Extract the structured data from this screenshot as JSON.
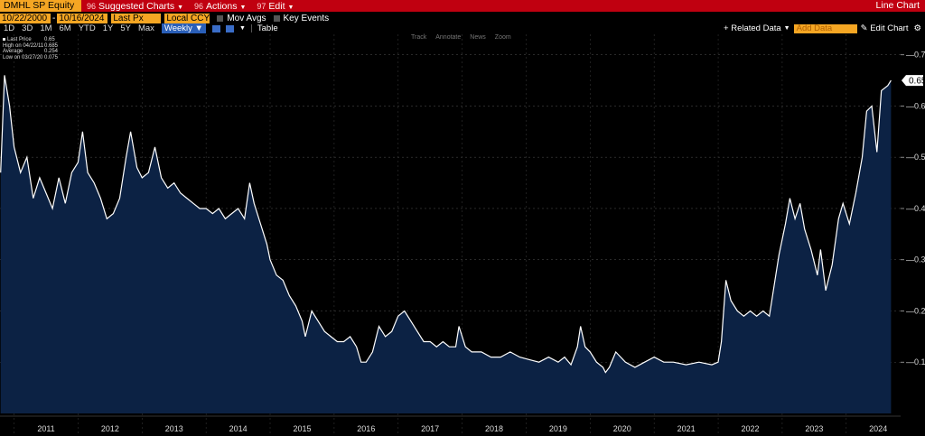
{
  "top": {
    "ticker": "DMHL SP Equity",
    "menu": [
      {
        "num": "96",
        "label": "Suggested Charts"
      },
      {
        "num": "96",
        "label": "Actions"
      },
      {
        "num": "97",
        "label": "Edit"
      }
    ],
    "chart_type": "Line Chart"
  },
  "range": {
    "start": "10/22/2000",
    "end": "10/16/2024",
    "field": "Last Px",
    "currency": "Local CCY",
    "mov_avgs": "Mov Avgs",
    "key_events": "Key Events"
  },
  "periods": [
    "1D",
    "3D",
    "1M",
    "6M",
    "YTD",
    "1Y",
    "5Y",
    "Max"
  ],
  "frequency": "Weekly",
  "table_label": "Table",
  "related_data": "Related Data",
  "add_data_placeholder": "Add Data",
  "edit_chart": "Edit Chart",
  "mini_tools": [
    "Track",
    "Annotate",
    "News",
    "Zoom"
  ],
  "legend": [
    {
      "k": "Last Price",
      "v": "0.65"
    },
    {
      "k": "High on 04/22/11",
      "v": "0.685"
    },
    {
      "k": "Average",
      "v": "0.254"
    },
    {
      "k": "Low on 03/27/20",
      "v": "0.075"
    }
  ],
  "colors": {
    "line": "#ffffff",
    "area": "#0c2244",
    "accent": "#f5a623",
    "menu_bar": "#c00010"
  },
  "chart_data": {
    "type": "area",
    "series": [
      {
        "values": [
          {
            "x": 2010.79,
            "y": 0.47
          },
          {
            "x": 2010.85,
            "y": 0.66
          },
          {
            "x": 2010.93,
            "y": 0.6
          },
          {
            "x": 2011.0,
            "y": 0.52
          },
          {
            "x": 2011.1,
            "y": 0.47
          },
          {
            "x": 2011.2,
            "y": 0.5
          },
          {
            "x": 2011.3,
            "y": 0.42
          },
          {
            "x": 2011.4,
            "y": 0.46
          },
          {
            "x": 2011.5,
            "y": 0.43
          },
          {
            "x": 2011.6,
            "y": 0.4
          },
          {
            "x": 2011.7,
            "y": 0.46
          },
          {
            "x": 2011.8,
            "y": 0.41
          },
          {
            "x": 2011.9,
            "y": 0.47
          },
          {
            "x": 2012.0,
            "y": 0.49
          },
          {
            "x": 2012.07,
            "y": 0.55
          },
          {
            "x": 2012.15,
            "y": 0.47
          },
          {
            "x": 2012.25,
            "y": 0.45
          },
          {
            "x": 2012.35,
            "y": 0.42
          },
          {
            "x": 2012.45,
            "y": 0.38
          },
          {
            "x": 2012.55,
            "y": 0.39
          },
          {
            "x": 2012.65,
            "y": 0.42
          },
          {
            "x": 2012.75,
            "y": 0.5
          },
          {
            "x": 2012.82,
            "y": 0.55
          },
          {
            "x": 2012.92,
            "y": 0.48
          },
          {
            "x": 2013.0,
            "y": 0.46
          },
          {
            "x": 2013.1,
            "y": 0.47
          },
          {
            "x": 2013.2,
            "y": 0.52
          },
          {
            "x": 2013.3,
            "y": 0.46
          },
          {
            "x": 2013.4,
            "y": 0.44
          },
          {
            "x": 2013.5,
            "y": 0.45
          },
          {
            "x": 2013.6,
            "y": 0.43
          },
          {
            "x": 2013.7,
            "y": 0.42
          },
          {
            "x": 2013.8,
            "y": 0.41
          },
          {
            "x": 2013.9,
            "y": 0.4
          },
          {
            "x": 2014.0,
            "y": 0.4
          },
          {
            "x": 2014.1,
            "y": 0.39
          },
          {
            "x": 2014.2,
            "y": 0.4
          },
          {
            "x": 2014.3,
            "y": 0.38
          },
          {
            "x": 2014.4,
            "y": 0.39
          },
          {
            "x": 2014.5,
            "y": 0.4
          },
          {
            "x": 2014.6,
            "y": 0.38
          },
          {
            "x": 2014.68,
            "y": 0.45
          },
          {
            "x": 2014.75,
            "y": 0.41
          },
          {
            "x": 2014.85,
            "y": 0.37
          },
          {
            "x": 2014.95,
            "y": 0.33
          },
          {
            "x": 2015.0,
            "y": 0.3
          },
          {
            "x": 2015.1,
            "y": 0.27
          },
          {
            "x": 2015.2,
            "y": 0.26
          },
          {
            "x": 2015.3,
            "y": 0.23
          },
          {
            "x": 2015.4,
            "y": 0.21
          },
          {
            "x": 2015.5,
            "y": 0.18
          },
          {
            "x": 2015.55,
            "y": 0.15
          },
          {
            "x": 2015.65,
            "y": 0.2
          },
          {
            "x": 2015.75,
            "y": 0.18
          },
          {
            "x": 2015.85,
            "y": 0.16
          },
          {
            "x": 2015.95,
            "y": 0.15
          },
          {
            "x": 2016.05,
            "y": 0.14
          },
          {
            "x": 2016.15,
            "y": 0.14
          },
          {
            "x": 2016.25,
            "y": 0.15
          },
          {
            "x": 2016.35,
            "y": 0.13
          },
          {
            "x": 2016.42,
            "y": 0.1
          },
          {
            "x": 2016.5,
            "y": 0.1
          },
          {
            "x": 2016.6,
            "y": 0.12
          },
          {
            "x": 2016.7,
            "y": 0.17
          },
          {
            "x": 2016.8,
            "y": 0.15
          },
          {
            "x": 2016.9,
            "y": 0.16
          },
          {
            "x": 2017.0,
            "y": 0.19
          },
          {
            "x": 2017.1,
            "y": 0.2
          },
          {
            "x": 2017.2,
            "y": 0.18
          },
          {
            "x": 2017.3,
            "y": 0.16
          },
          {
            "x": 2017.4,
            "y": 0.14
          },
          {
            "x": 2017.5,
            "y": 0.14
          },
          {
            "x": 2017.6,
            "y": 0.13
          },
          {
            "x": 2017.7,
            "y": 0.14
          },
          {
            "x": 2017.8,
            "y": 0.13
          },
          {
            "x": 2017.9,
            "y": 0.13
          },
          {
            "x": 2017.95,
            "y": 0.17
          },
          {
            "x": 2018.05,
            "y": 0.13
          },
          {
            "x": 2018.15,
            "y": 0.12
          },
          {
            "x": 2018.3,
            "y": 0.12
          },
          {
            "x": 2018.45,
            "y": 0.11
          },
          {
            "x": 2018.6,
            "y": 0.11
          },
          {
            "x": 2018.75,
            "y": 0.12
          },
          {
            "x": 2018.9,
            "y": 0.11
          },
          {
            "x": 2019.05,
            "y": 0.105
          },
          {
            "x": 2019.2,
            "y": 0.1
          },
          {
            "x": 2019.35,
            "y": 0.11
          },
          {
            "x": 2019.5,
            "y": 0.1
          },
          {
            "x": 2019.6,
            "y": 0.11
          },
          {
            "x": 2019.7,
            "y": 0.095
          },
          {
            "x": 2019.8,
            "y": 0.13
          },
          {
            "x": 2019.85,
            "y": 0.17
          },
          {
            "x": 2019.92,
            "y": 0.13
          },
          {
            "x": 2020.0,
            "y": 0.12
          },
          {
            "x": 2020.1,
            "y": 0.1
          },
          {
            "x": 2020.2,
            "y": 0.09
          },
          {
            "x": 2020.24,
            "y": 0.08
          },
          {
            "x": 2020.3,
            "y": 0.09
          },
          {
            "x": 2020.4,
            "y": 0.12
          },
          {
            "x": 2020.55,
            "y": 0.1
          },
          {
            "x": 2020.7,
            "y": 0.09
          },
          {
            "x": 2020.85,
            "y": 0.1
          },
          {
            "x": 2021.0,
            "y": 0.11
          },
          {
            "x": 2021.15,
            "y": 0.1
          },
          {
            "x": 2021.3,
            "y": 0.1
          },
          {
            "x": 2021.5,
            "y": 0.095
          },
          {
            "x": 2021.7,
            "y": 0.1
          },
          {
            "x": 2021.9,
            "y": 0.095
          },
          {
            "x": 2022.0,
            "y": 0.1
          },
          {
            "x": 2022.05,
            "y": 0.14
          },
          {
            "x": 2022.12,
            "y": 0.26
          },
          {
            "x": 2022.2,
            "y": 0.22
          },
          {
            "x": 2022.3,
            "y": 0.2
          },
          {
            "x": 2022.4,
            "y": 0.19
          },
          {
            "x": 2022.5,
            "y": 0.2
          },
          {
            "x": 2022.6,
            "y": 0.19
          },
          {
            "x": 2022.7,
            "y": 0.2
          },
          {
            "x": 2022.8,
            "y": 0.19
          },
          {
            "x": 2022.9,
            "y": 0.27
          },
          {
            "x": 2022.95,
            "y": 0.31
          },
          {
            "x": 2023.05,
            "y": 0.37
          },
          {
            "x": 2023.12,
            "y": 0.42
          },
          {
            "x": 2023.2,
            "y": 0.38
          },
          {
            "x": 2023.28,
            "y": 0.41
          },
          {
            "x": 2023.35,
            "y": 0.36
          },
          {
            "x": 2023.45,
            "y": 0.32
          },
          {
            "x": 2023.55,
            "y": 0.27
          },
          {
            "x": 2023.6,
            "y": 0.32
          },
          {
            "x": 2023.68,
            "y": 0.24
          },
          {
            "x": 2023.78,
            "y": 0.29
          },
          {
            "x": 2023.88,
            "y": 0.38
          },
          {
            "x": 2023.95,
            "y": 0.41
          },
          {
            "x": 2024.05,
            "y": 0.37
          },
          {
            "x": 2024.15,
            "y": 0.43
          },
          {
            "x": 2024.25,
            "y": 0.5
          },
          {
            "x": 2024.32,
            "y": 0.59
          },
          {
            "x": 2024.4,
            "y": 0.6
          },
          {
            "x": 2024.48,
            "y": 0.51
          },
          {
            "x": 2024.55,
            "y": 0.63
          },
          {
            "x": 2024.65,
            "y": 0.64
          },
          {
            "x": 2024.7,
            "y": 0.65
          }
        ]
      }
    ],
    "y_ticks": [
      "0.10",
      "0.20",
      "0.30",
      "0.40",
      "0.50",
      "0.60",
      "0.70"
    ],
    "x_ticks": [
      "2011",
      "2012",
      "2013",
      "2014",
      "2015",
      "2016",
      "2017",
      "2018",
      "2019",
      "2020",
      "2021",
      "2022",
      "2023",
      "2024"
    ],
    "last_value_label": "0.65",
    "ylim": [
      0,
      0.74
    ],
    "xlim": [
      2010.78,
      2024.85
    ]
  }
}
